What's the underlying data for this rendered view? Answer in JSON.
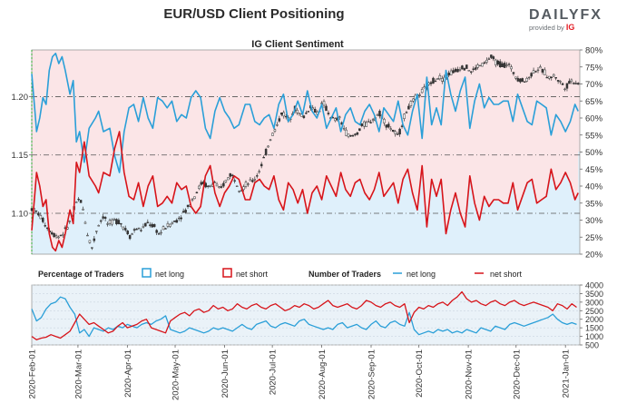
{
  "header": {
    "title": "EUR/USD Client Positioning",
    "logo_text": "DAILYFX",
    "logo_sub": "provided by",
    "logo_brand": "IG"
  },
  "colors": {
    "long": "#2a9fd8",
    "short": "#d7141a",
    "long_bg": "#dff0fb",
    "short_bg": "#fbe5e7",
    "candle": "#333333",
    "bottom_bg": "#eaf2f8"
  },
  "chart_data": [
    {
      "type": "line",
      "title": "IG Client Sentiment",
      "x_ticks": [
        "2020-Feb-01",
        "2020-Mar-01",
        "2020-Apr-01",
        "2020-May-01",
        "2020-Jun-01",
        "2020-Jul-01",
        "2020-Aug-01",
        "2020-Sep-01",
        "2020-Oct-01",
        "2020-Nov-01",
        "2020-Dec-01",
        "2021-Jan-01"
      ],
      "price_axis": {
        "ticks": [
          "1.20",
          "1.15",
          "1.10"
        ],
        "ylim": [
          1.065,
          1.24
        ]
      },
      "percent_axis": {
        "ticks": [
          "80%",
          "75%",
          "70%",
          "65%",
          "60%",
          "55%",
          "50%",
          "45%",
          "40%",
          "35%",
          "30%",
          "25%",
          "20%"
        ],
        "ylim": [
          20,
          80
        ]
      },
      "price_series": {
        "name": "EUR/USD",
        "x": [
          0,
          4,
          7,
          10,
          14,
          17,
          21,
          24,
          27,
          29,
          31,
          33,
          35,
          38,
          41,
          45,
          48,
          52,
          55,
          59,
          62,
          65,
          69,
          73,
          77,
          80,
          83,
          87,
          90,
          93,
          97,
          100,
          103,
          107,
          111,
          115,
          118,
          121,
          125,
          128,
          131,
          135,
          139,
          142,
          146,
          150,
          154,
          157,
          161,
          165,
          168,
          171,
          175,
          179,
          183,
          186,
          190,
          193,
          197,
          200,
          204,
          207,
          211,
          215,
          219,
          222,
          226,
          230,
          233,
          236,
          240,
          244,
          248,
          251,
          255,
          259,
          262,
          266,
          270,
          273,
          276,
          280,
          284,
          288,
          291,
          295,
          299,
          303,
          306,
          310,
          314,
          317,
          321,
          325,
          328,
          332,
          335,
          339,
          342
        ],
        "y": [
          1.104,
          1.1,
          1.094,
          1.087,
          1.082,
          1.08,
          1.085,
          1.093,
          1.105,
          1.112,
          1.11,
          1.098,
          1.082,
          1.07,
          1.088,
          1.098,
          1.09,
          1.094,
          1.093,
          1.086,
          1.08,
          1.087,
          1.086,
          1.092,
          1.088,
          1.082,
          1.087,
          1.091,
          1.093,
          1.097,
          1.103,
          1.11,
          1.117,
          1.127,
          1.122,
          1.127,
          1.119,
          1.126,
          1.134,
          1.128,
          1.12,
          1.125,
          1.128,
          1.134,
          1.148,
          1.165,
          1.175,
          1.187,
          1.18,
          1.19,
          1.185,
          1.183,
          1.192,
          1.186,
          1.195,
          1.186,
          1.179,
          1.182,
          1.17,
          1.165,
          1.168,
          1.175,
          1.177,
          1.182,
          1.186,
          1.177,
          1.172,
          1.165,
          1.18,
          1.19,
          1.197,
          1.203,
          1.208,
          1.213,
          1.217,
          1.215,
          1.22,
          1.222,
          1.226,
          1.225,
          1.221,
          1.226,
          1.228,
          1.234,
          1.23,
          1.227,
          1.228,
          1.219,
          1.215,
          1.213,
          1.22,
          1.224,
          1.222,
          1.216,
          1.218,
          1.212,
          1.208,
          1.214,
          1.212
        ]
      },
      "net_long_pct": {
        "name": "net long",
        "x": [
          0,
          2,
          3,
          5,
          7,
          9,
          11,
          13,
          15,
          17,
          19,
          21,
          24,
          26,
          28,
          30,
          33,
          36,
          40,
          42,
          45,
          49,
          52,
          55,
          58,
          61,
          64,
          67,
          70,
          73,
          76,
          79,
          82,
          85,
          88,
          91,
          94,
          97,
          100,
          103,
          106,
          109,
          112,
          115,
          118,
          121,
          124,
          127,
          130,
          134,
          137,
          140,
          143,
          146,
          149,
          152,
          155,
          158,
          161,
          164,
          167,
          170,
          173,
          176,
          179,
          182,
          185,
          188,
          191,
          194,
          197,
          200,
          203,
          206,
          209,
          212,
          215,
          218,
          221,
          224,
          227,
          230,
          233,
          236,
          239,
          242,
          245,
          248,
          251,
          254,
          257,
          260,
          263,
          266,
          269,
          272,
          275,
          278,
          281,
          284,
          287,
          290,
          293,
          296,
          299,
          302,
          305,
          308,
          311,
          314,
          317,
          320,
          323,
          326,
          329,
          332,
          335,
          338,
          341,
          343
        ],
        "y": [
          73,
          62,
          56,
          60,
          66,
          64,
          74,
          78,
          79,
          76,
          78,
          74,
          67,
          71,
          53,
          56,
          47,
          57,
          60,
          62,
          56,
          57,
          49,
          44,
          56,
          63,
          64,
          59,
          66,
          60,
          57,
          66,
          65,
          63,
          65,
          59,
          61,
          60,
          66,
          68,
          66,
          57,
          54,
          62,
          66,
          62,
          60,
          57,
          58,
          64,
          64,
          59,
          58,
          60,
          61,
          57,
          64,
          67,
          59,
          61,
          65,
          61,
          68,
          62,
          60,
          64,
          57,
          60,
          63,
          56,
          61,
          63,
          59,
          58,
          62,
          64,
          61,
          56,
          63,
          61,
          59,
          65,
          58,
          55,
          62,
          67,
          54,
          72,
          58,
          63,
          58,
          74,
          67,
          62,
          68,
          72,
          57,
          65,
          70,
          63,
          66,
          64,
          64,
          65,
          65,
          59,
          67,
          63,
          59,
          58,
          65,
          64,
          63,
          55,
          61,
          59,
          56,
          59,
          64,
          62
        ]
      },
      "net_short_pct": {
        "name": "net short",
        "x": [
          0,
          2,
          3,
          5,
          7,
          9,
          11,
          13,
          15,
          17,
          19,
          21,
          24,
          26,
          28,
          30,
          33,
          36,
          40,
          42,
          45,
          49,
          52,
          55,
          58,
          61,
          64,
          67,
          70,
          73,
          76,
          79,
          82,
          85,
          88,
          91,
          94,
          97,
          100,
          103,
          106,
          109,
          112,
          115,
          118,
          121,
          124,
          127,
          130,
          134,
          137,
          140,
          143,
          146,
          149,
          152,
          155,
          158,
          161,
          164,
          167,
          170,
          173,
          176,
          179,
          182,
          185,
          188,
          191,
          194,
          197,
          200,
          203,
          206,
          209,
          212,
          215,
          218,
          221,
          224,
          227,
          230,
          233,
          236,
          239,
          242,
          245,
          248,
          251,
          254,
          257,
          260,
          263,
          266,
          269,
          272,
          275,
          278,
          281,
          284,
          287,
          290,
          293,
          296,
          299,
          302,
          305,
          308,
          311,
          314,
          317,
          320,
          323,
          326,
          329,
          332,
          335,
          338,
          341,
          343
        ],
        "y": [
          27,
          38,
          44,
          40,
          34,
          36,
          26,
          22,
          21,
          24,
          22,
          26,
          33,
          29,
          47,
          44,
          53,
          43,
          40,
          38,
          44,
          43,
          51,
          56,
          44,
          37,
          36,
          41,
          34,
          40,
          43,
          34,
          35,
          37,
          35,
          41,
          39,
          40,
          34,
          32,
          34,
          43,
          46,
          38,
          34,
          38,
          40,
          43,
          42,
          36,
          36,
          41,
          42,
          40,
          39,
          43,
          36,
          33,
          41,
          39,
          35,
          39,
          32,
          38,
          40,
          36,
          43,
          40,
          37,
          44,
          39,
          37,
          41,
          42,
          38,
          36,
          39,
          44,
          37,
          39,
          41,
          35,
          42,
          45,
          38,
          33,
          46,
          28,
          42,
          37,
          42,
          26,
          33,
          38,
          32,
          28,
          43,
          35,
          30,
          37,
          34,
          36,
          36,
          35,
          35,
          41,
          33,
          37,
          41,
          42,
          35,
          36,
          37,
          45,
          39,
          41,
          44,
          41,
          36,
          38
        ]
      },
      "legend": [
        {
          "label": "Percentage of Traders"
        },
        {
          "label": "net long"
        },
        {
          "label": "net short"
        }
      ]
    },
    {
      "type": "line",
      "title": "Number of Traders",
      "y_ticks": [
        "4000",
        "3500",
        "3000",
        "2500",
        "2000",
        "1500",
        "1000",
        "500"
      ],
      "ylim": [
        500,
        4000
      ],
      "net_long": {
        "name": "net long",
        "x": [
          0,
          3,
          6,
          9,
          12,
          15,
          18,
          21,
          24,
          27,
          30,
          33,
          36,
          39,
          42,
          45,
          48,
          51,
          54,
          57,
          60,
          63,
          66,
          69,
          72,
          75,
          78,
          81,
          84,
          87,
          90,
          93,
          96,
          99,
          102,
          105,
          108,
          111,
          114,
          117,
          120,
          123,
          126,
          129,
          132,
          135,
          138,
          141,
          144,
          147,
          150,
          153,
          156,
          159,
          162,
          165,
          168,
          171,
          174,
          177,
          180,
          183,
          186,
          189,
          192,
          195,
          198,
          201,
          204,
          207,
          210,
          213,
          216,
          219,
          222,
          225,
          228,
          231,
          234,
          237,
          240,
          243,
          246,
          249,
          252,
          255,
          258,
          261,
          264,
          267,
          270,
          273,
          276,
          279,
          282,
          285,
          288,
          291,
          294,
          297,
          300,
          303,
          306,
          309,
          312,
          315,
          318,
          321,
          324,
          327,
          330,
          333,
          336,
          339,
          342
        ],
        "y": [
          2600,
          1900,
          2100,
          2600,
          2900,
          3000,
          3300,
          3200,
          2700,
          2300,
          1200,
          1400,
          1000,
          1500,
          1400,
          1300,
          1500,
          1400,
          1600,
          1500,
          1700,
          1600,
          1500,
          1700,
          1800,
          1700,
          1900,
          2000,
          2200,
          1400,
          1300,
          1200,
          1300,
          1500,
          1400,
          1300,
          1200,
          1300,
          1500,
          1400,
          1500,
          1400,
          1300,
          1500,
          1700,
          1500,
          1400,
          1700,
          1800,
          1900,
          1600,
          1500,
          1700,
          1800,
          1700,
          1600,
          1900,
          2000,
          1700,
          1600,
          1500,
          1400,
          1500,
          1400,
          1700,
          1800,
          1500,
          1600,
          1700,
          1500,
          1400,
          1700,
          1900,
          1600,
          1500,
          1800,
          1900,
          1700,
          1600,
          2400,
          1400,
          1100,
          1200,
          1300,
          1200,
          1400,
          1300,
          1400,
          1200,
          1300,
          1200,
          1400,
          1300,
          1200,
          1500,
          1400,
          1300,
          1600,
          1500,
          1400,
          1700,
          1800,
          1700,
          1600,
          1700,
          1800,
          1900,
          2000,
          2100,
          2300,
          2000,
          1800,
          1700,
          1800,
          1700
        ]
      },
      "net_short": {
        "name": "net short",
        "x": [
          0,
          3,
          6,
          9,
          12,
          15,
          18,
          21,
          24,
          27,
          30,
          33,
          36,
          39,
          42,
          45,
          48,
          51,
          54,
          57,
          60,
          63,
          66,
          69,
          72,
          75,
          78,
          81,
          84,
          87,
          90,
          93,
          96,
          99,
          102,
          105,
          108,
          111,
          114,
          117,
          120,
          123,
          126,
          129,
          132,
          135,
          138,
          141,
          144,
          147,
          150,
          153,
          156,
          159,
          162,
          165,
          168,
          171,
          174,
          177,
          180,
          183,
          186,
          189,
          192,
          195,
          198,
          201,
          204,
          207,
          210,
          213,
          216,
          219,
          222,
          225,
          228,
          231,
          234,
          237,
          240,
          243,
          246,
          249,
          252,
          255,
          258,
          261,
          264,
          267,
          270,
          273,
          276,
          279,
          282,
          285,
          288,
          291,
          294,
          297,
          300,
          303,
          306,
          309,
          312,
          315,
          318,
          321,
          324,
          327,
          330,
          333,
          336,
          339,
          342
        ],
        "y": [
          1000,
          800,
          900,
          950,
          1100,
          1000,
          900,
          1100,
          1300,
          1800,
          2300,
          2000,
          1700,
          1800,
          1600,
          1400,
          1200,
          1300,
          1600,
          1800,
          1500,
          1600,
          1700,
          1900,
          2000,
          1500,
          1400,
          1300,
          1200,
          1900,
          2100,
          2300,
          2400,
          2200,
          2500,
          2600,
          2400,
          2500,
          2800,
          2600,
          2700,
          2500,
          2600,
          2900,
          2700,
          2600,
          2800,
          2900,
          2700,
          2600,
          2800,
          2900,
          2700,
          2500,
          2600,
          2800,
          2700,
          2900,
          2800,
          2600,
          2700,
          2900,
          3100,
          2800,
          2700,
          2800,
          2900,
          2700,
          2600,
          2800,
          3100,
          3000,
          2800,
          2700,
          2900,
          3000,
          2800,
          2700,
          2900,
          1800,
          2400,
          2700,
          2600,
          2800,
          2700,
          2900,
          3000,
          2800,
          3100,
          3300,
          3600,
          3200,
          3000,
          3100,
          2900,
          2800,
          3000,
          3100,
          2900,
          2800,
          3000,
          3100,
          2900,
          2800,
          2900,
          3000,
          2900,
          2800,
          2700,
          2500,
          2900,
          2800,
          2600,
          2900,
          2700
        ]
      },
      "legend": [
        {
          "label": "Number of Traders"
        },
        {
          "label": "net long"
        },
        {
          "label": "net short"
        }
      ]
    }
  ]
}
